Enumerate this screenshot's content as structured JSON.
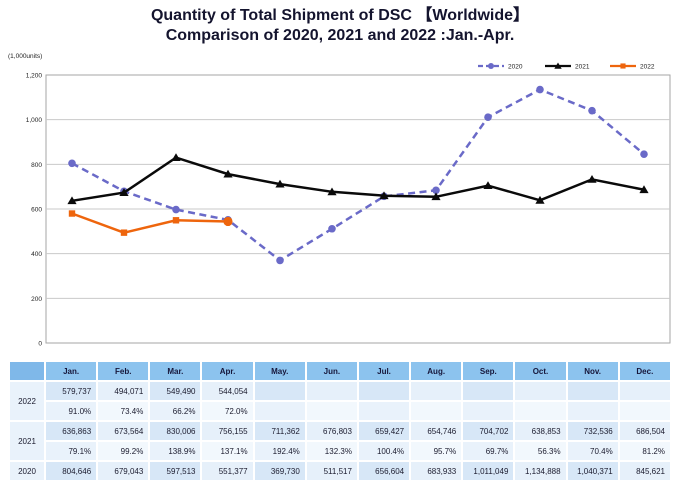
{
  "title": {
    "line1": "Quantity of Total Shipment of DSC 【Worldwide】",
    "line2": "Comparison of 2020, 2021 and 2022 :Jan.-Apr."
  },
  "units_label": "(1,000units)",
  "chart_data": {
    "type": "line",
    "title": "Quantity of Total Shipment of DSC 【Worldwide】 Comparison of 2020, 2021 and 2022 :Jan.-Apr.",
    "categories": [
      "Jan.",
      "Feb.",
      "Mar.",
      "Apr.",
      "May.",
      "Jun.",
      "Jul.",
      "Aug.",
      "Sep.",
      "Oct.",
      "Nov.",
      "Dec."
    ],
    "ylabel": "(1,000units)",
    "ylim": [
      0,
      1200000
    ],
    "y_tick_labels": [
      "0",
      "200",
      "400",
      "600",
      "800",
      "1,000",
      "1,200"
    ],
    "grid": "horizontal",
    "legend_position": "top-right",
    "series": [
      {
        "name": "2020",
        "color": "#6A6AC8",
        "line_style": "dashed",
        "marker": "circle",
        "values": [
          804646,
          679043,
          597513,
          551377,
          369730,
          511517,
          656604,
          683933,
          1011049,
          1134888,
          1040371,
          845621
        ]
      },
      {
        "name": "2021",
        "color": "#0A0A0A",
        "line_style": "solid",
        "marker": "triangle",
        "values": [
          636863,
          673564,
          830006,
          756155,
          711362,
          676803,
          659427,
          654746,
          704702,
          638853,
          732536,
          686504
        ]
      },
      {
        "name": "2022",
        "color": "#EE650D",
        "line_style": "solid",
        "marker": "square",
        "last_marker": "circle",
        "values": [
          579737,
          494071,
          549490,
          544054
        ]
      }
    ]
  },
  "table": {
    "corner_label": "",
    "columns": [
      "Jan.",
      "Feb.",
      "Mar.",
      "Apr.",
      "May.",
      "Jun.",
      "Jul.",
      "Aug.",
      "Sep.",
      "Oct.",
      "Nov.",
      "Dec."
    ],
    "rows": [
      {
        "year": "2022",
        "values": [
          "579,737",
          "494,071",
          "549,490",
          "544,054",
          "",
          "",
          "",
          "",
          "",
          "",
          "",
          ""
        ],
        "percents": [
          "91.0%",
          "73.4%",
          "66.2%",
          "72.0%",
          "",
          "",
          "",
          "",
          "",
          "",
          "",
          ""
        ]
      },
      {
        "year": "2021",
        "values": [
          "636,863",
          "673,564",
          "830,006",
          "756,155",
          "711,362",
          "676,803",
          "659,427",
          "654,746",
          "704,702",
          "638,853",
          "732,536",
          "686,504"
        ],
        "percents": [
          "79.1%",
          "99.2%",
          "138.9%",
          "137.1%",
          "192.4%",
          "132.3%",
          "100.4%",
          "95.7%",
          "69.7%",
          "56.3%",
          "70.4%",
          "81.2%"
        ]
      },
      {
        "year": "2020",
        "values": [
          "804,646",
          "679,043",
          "597,513",
          "551,377",
          "369,730",
          "511,517",
          "656,604",
          "683,933",
          "1,011,049",
          "1,134,888",
          "1,040,371",
          "845,621"
        ]
      }
    ]
  },
  "colors": {
    "series_2020": "#6A6AC8",
    "series_2021": "#0A0A0A",
    "series_2022": "#EE650D",
    "table_header_bg": "#8CC3EE",
    "grid_line": "#C9C9C9"
  }
}
